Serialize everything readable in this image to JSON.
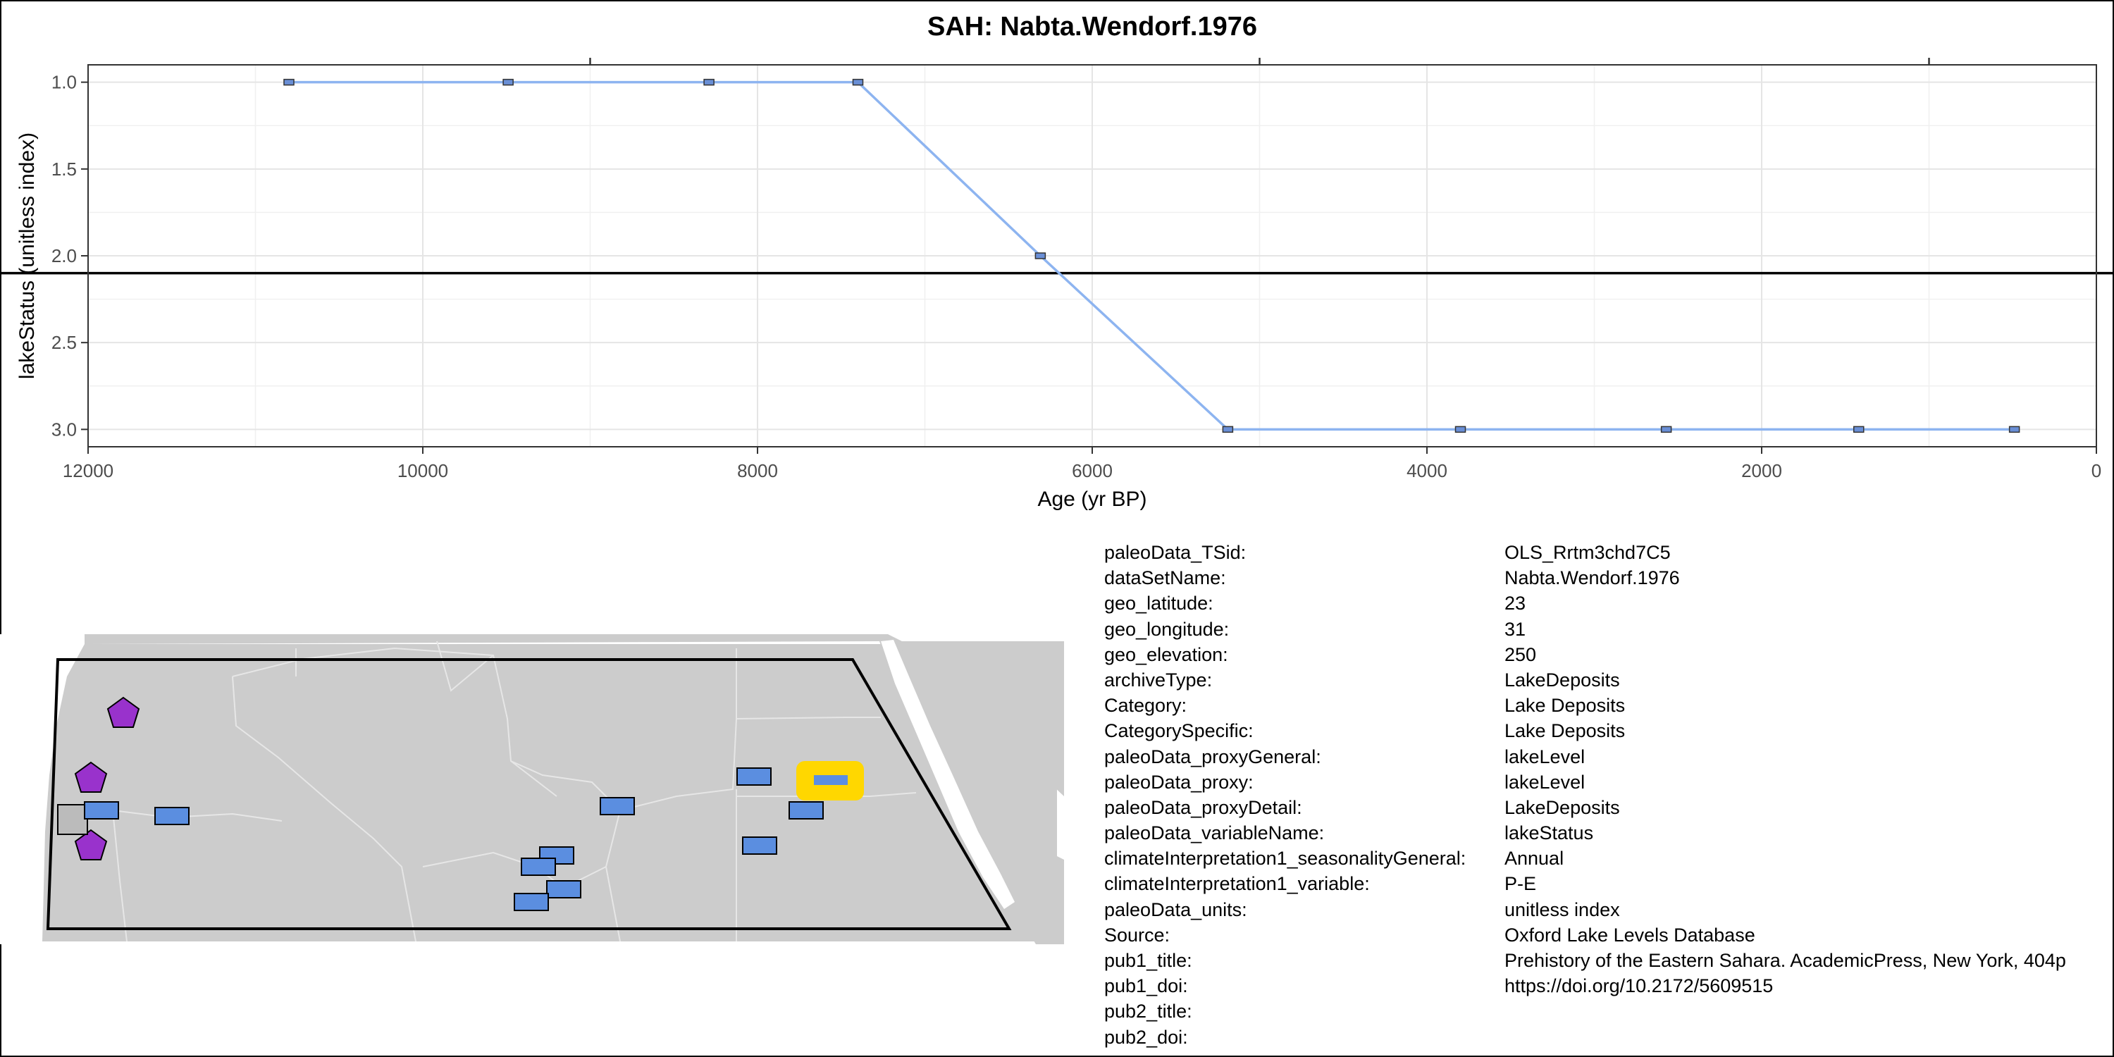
{
  "chart_data": {
    "type": "line",
    "title": "SAH: Nabta.Wendorf.1976",
    "xlabel": "Age (yr BP)",
    "ylabel": "lakeStatus (unitless index)",
    "xlim": [
      12000,
      0
    ],
    "ylim": [
      3.1,
      0.9
    ],
    "x_reversed": true,
    "y_reversed": true,
    "x_ticks": [
      "12000",
      "10000",
      "8000",
      "6000",
      "4000",
      "2000",
      "0"
    ],
    "y_ticks": [
      "1.0",
      "1.5",
      "2.0",
      "2.5",
      "3.0"
    ],
    "grid": true,
    "reference_line_y": 2.1,
    "series": [
      {
        "x": [
          10800,
          9490,
          8290,
          7400,
          6310,
          5190,
          3800,
          2570,
          1420,
          490
        ],
        "y": [
          1,
          1,
          1,
          1,
          2,
          3,
          3,
          3,
          3,
          3
        ],
        "color": "#8db4f0",
        "marker_color": "#6a8fd6"
      }
    ]
  },
  "map": {
    "land_color": "#cccccc",
    "border_color": "#e4e4e4",
    "marker_fill": "#5b8ee0",
    "pentagon_fill": "#9932cc",
    "square_fill": "#bbbbbb",
    "highlight_color": "#ffd700"
  },
  "metadata": [
    {
      "key": "paleoData_TSid:",
      "value": "OLS_Rrtm3chd7C5"
    },
    {
      "key": "dataSetName:",
      "value": "Nabta.Wendorf.1976"
    },
    {
      "key": "geo_latitude:",
      "value": "23"
    },
    {
      "key": "geo_longitude:",
      "value": "31"
    },
    {
      "key": "geo_elevation:",
      "value": "250"
    },
    {
      "key": "archiveType:",
      "value": "LakeDeposits"
    },
    {
      "key": "Category:",
      "value": "Lake Deposits"
    },
    {
      "key": "CategorySpecific:",
      "value": "Lake Deposits"
    },
    {
      "key": "paleoData_proxyGeneral:",
      "value": "lakeLevel"
    },
    {
      "key": "paleoData_proxy:",
      "value": "lakeLevel"
    },
    {
      "key": "paleoData_proxyDetail:",
      "value": "LakeDeposits"
    },
    {
      "key": "paleoData_variableName:",
      "value": "lakeStatus"
    },
    {
      "key": "climateInterpretation1_seasonalityGeneral:",
      "value": "Annual"
    },
    {
      "key": "climateInterpretation1_variable:",
      "value": "P-E"
    },
    {
      "key": "paleoData_units:",
      "value": "unitless index"
    },
    {
      "key": "Source:",
      "value": "Oxford Lake Levels Database"
    },
    {
      "key": "pub1_title:",
      "value": "Prehistory of the Eastern Sahara. AcademicPress, New York, 404p"
    },
    {
      "key": "pub1_doi:",
      "value": "https://doi.org/10.2172/5609515"
    },
    {
      "key": "pub2_title:",
      "value": ""
    },
    {
      "key": "pub2_doi:",
      "value": ""
    }
  ]
}
